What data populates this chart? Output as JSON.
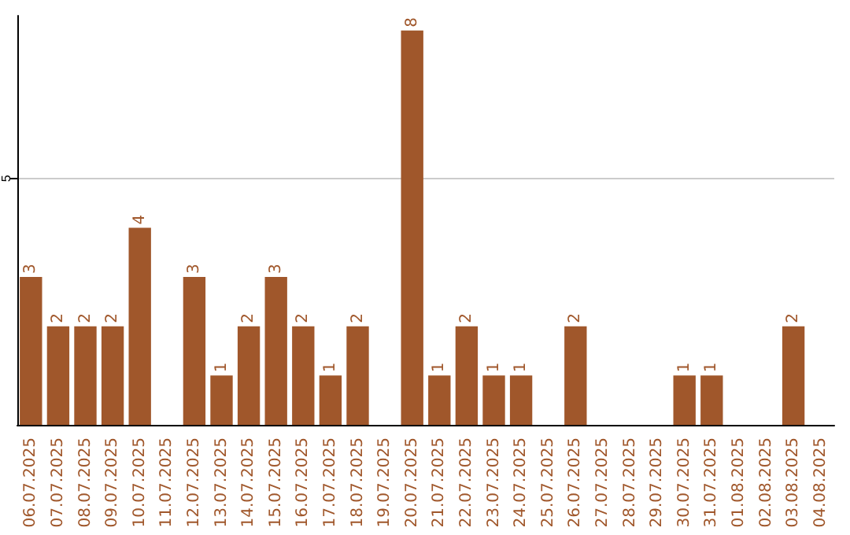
{
  "chart_data": {
    "type": "bar",
    "categories": [
      "06.07.2025",
      "07.07.2025",
      "08.07.2025",
      "09.07.2025",
      "10.07.2025",
      "11.07.2025",
      "12.07.2025",
      "13.07.2025",
      "14.07.2025",
      "15.07.2025",
      "16.07.2025",
      "17.07.2025",
      "18.07.2025",
      "19.07.2025",
      "20.07.2025",
      "21.07.2025",
      "22.07.2025",
      "23.07.2025",
      "24.07.2025",
      "25.07.2025",
      "26.07.2025",
      "27.07.2025",
      "28.07.2025",
      "29.07.2025",
      "30.07.2025",
      "31.07.2025",
      "01.08.2025",
      "02.08.2025",
      "03.08.2025",
      "04.08.2025"
    ],
    "values": [
      3,
      2,
      2,
      2,
      4,
      0,
      3,
      1,
      2,
      3,
      2,
      1,
      2,
      0,
      8,
      1,
      2,
      1,
      1,
      0,
      2,
      0,
      0,
      0,
      1,
      1,
      0,
      0,
      2,
      0
    ],
    "value_labels": [
      "3",
      "2",
      "2",
      "2",
      "4",
      null,
      "3",
      "1",
      "2",
      "3",
      "2",
      "1",
      "2",
      null,
      "8",
      "1",
      "2",
      "1",
      "1",
      null,
      "2",
      null,
      null,
      null,
      "1",
      "1",
      null,
      null,
      "2",
      null
    ],
    "color": "#a0572b",
    "ylim": [
      0,
      8.3
    ],
    "yticks": [
      5
    ],
    "grid": "y"
  }
}
